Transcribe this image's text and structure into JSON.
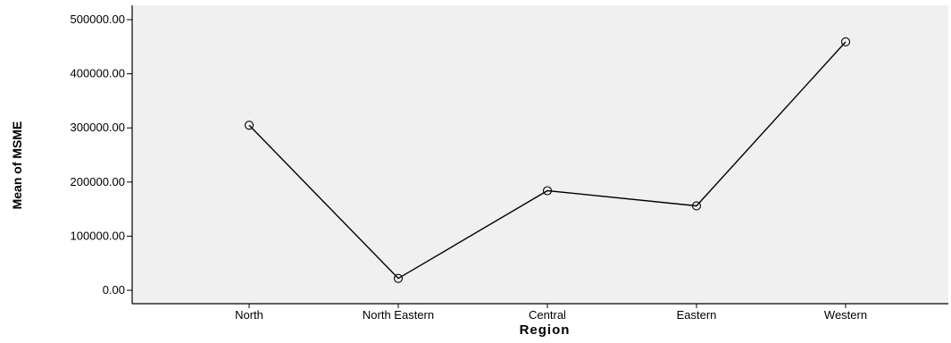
{
  "chart_data": {
    "type": "line",
    "title": "",
    "xlabel": "Region",
    "ylabel": "Mean of MSME",
    "categories": [
      "North",
      "North Eastern",
      "Central",
      "Eastern",
      "Western"
    ],
    "series": [
      {
        "values": [
          305000,
          22000,
          184000,
          156000,
          459000
        ]
      }
    ],
    "ylim": [
      0,
      500000
    ],
    "yticks": [
      {
        "value": 0,
        "label": "0.00"
      },
      {
        "value": 100000,
        "label": "100000.00"
      },
      {
        "value": 200000,
        "label": "200000.00"
      },
      {
        "value": 300000,
        "label": "300000.00"
      },
      {
        "value": 400000,
        "label": "400000.00"
      },
      {
        "value": 500000,
        "label": "500000.00"
      }
    ],
    "grid": false,
    "marker": "open-circle",
    "colors": {
      "plot_background": "#f0f0f0",
      "line": "#000000",
      "axis": "#000000"
    }
  }
}
